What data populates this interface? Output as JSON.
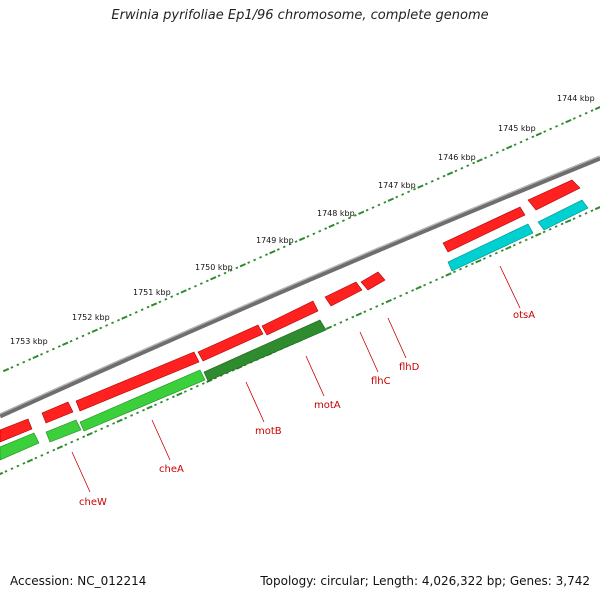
{
  "title": "Erwinia pyrifoliae Ep1/96 chromosome, complete genome",
  "accession": "Accession: NC_012214",
  "summary": "Topology: circular; Length: 4,026,322 bp; Genes: 3,742",
  "kbp_labels": [
    "1744 kbp",
    "1745 kbp",
    "1746 kbp",
    "1747 kbp",
    "1748 kbp",
    "1749 kbp",
    "1750 kbp",
    "1751 kbp",
    "1752 kbp",
    "1753 kbp"
  ],
  "genes": [
    "otsA",
    "flhD",
    "flhC",
    "motA",
    "motB",
    "cheA",
    "cheW"
  ],
  "colors": {
    "forward_gene": "#ff0000",
    "reverse_gene": "#33cc33",
    "reverse_gene_dark": "#2e8b2e",
    "rna_gene": "#00cccc",
    "backbone": "#7a7a7a",
    "tick_outer": "#2e8b2e",
    "gene_label": "#cc0000"
  }
}
